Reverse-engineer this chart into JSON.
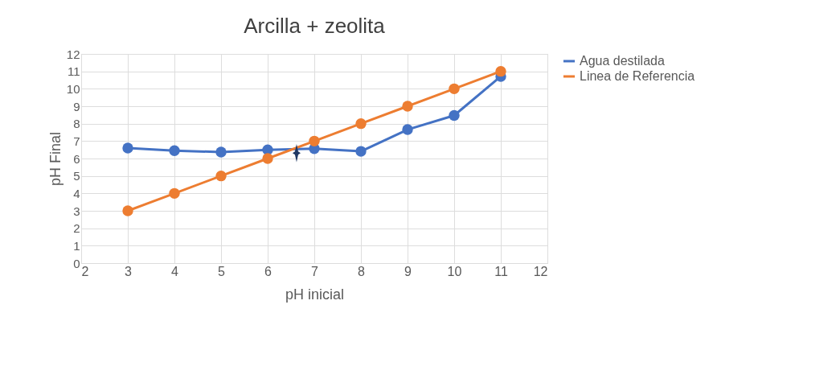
{
  "chart_data": {
    "type": "line",
    "title": "Arcilla + zeolita",
    "xlabel": "pH inicial",
    "ylabel": "pH Final",
    "xlim": [
      2,
      12
    ],
    "xticks": [
      2,
      3,
      4,
      5,
      6,
      7,
      8,
      9,
      10,
      11,
      12
    ],
    "ylim": [
      0,
      12
    ],
    "yticks": [
      0,
      1,
      2,
      3,
      4,
      5,
      6,
      7,
      8,
      9,
      10,
      11,
      12
    ],
    "grid": true,
    "legend": "right",
    "marker": "circle",
    "line_style": "solid",
    "series": [
      {
        "name": "Agua destilada",
        "color": "#4472c4",
        "x": [
          3,
          4,
          5,
          6,
          7,
          8,
          9,
          10,
          11
        ],
        "values": [
          6.6,
          6.45,
          6.37,
          6.5,
          6.56,
          6.41,
          7.66,
          8.47,
          10.71
        ]
      },
      {
        "name": "Linea de Referencia",
        "color": "#ed7d31",
        "x": [
          3,
          4,
          5,
          6,
          7,
          8,
          9,
          10,
          11
        ],
        "values": [
          3,
          4,
          5,
          6,
          7,
          8,
          9,
          10,
          11
        ]
      },
      {
        "type": "scatter",
        "marker": "star",
        "color": "#1f3864",
        "x": [
          6.62
        ],
        "values": [
          6.31
        ]
      }
    ]
  }
}
